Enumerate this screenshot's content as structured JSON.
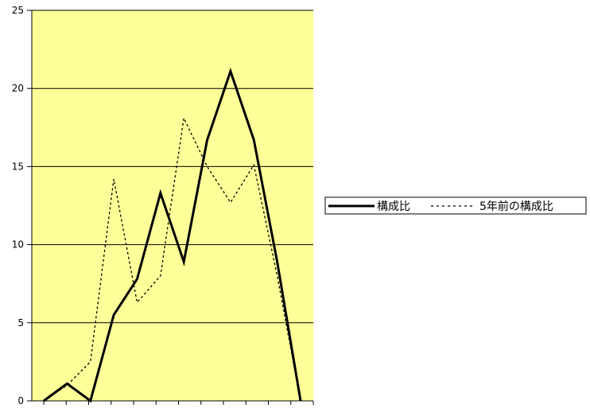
{
  "chart_data": {
    "type": "line",
    "x": [
      1,
      2,
      3,
      4,
      5,
      6,
      7,
      8,
      9,
      10,
      11,
      12
    ],
    "ylim": [
      0,
      25
    ],
    "yticks": [
      "0",
      "5",
      "10",
      "15",
      "20",
      "25"
    ],
    "grid": true,
    "plot_background": "#FFFF99",
    "legend_position": "right",
    "series": [
      {
        "name": "構成比",
        "style": "solid",
        "color": "#000000",
        "values": [
          0.0,
          1.1,
          0.0,
          5.5,
          7.8,
          13.3,
          8.9,
          16.7,
          21.1,
          16.7,
          8.9,
          0.0
        ]
      },
      {
        "name": "5年前の構成比",
        "style": "dotted",
        "color": "#000000",
        "values": [
          0.0,
          1.0,
          2.5,
          14.2,
          6.3,
          8.0,
          18.1,
          15.0,
          12.7,
          15.1,
          8.0,
          0.0
        ]
      }
    ]
  }
}
